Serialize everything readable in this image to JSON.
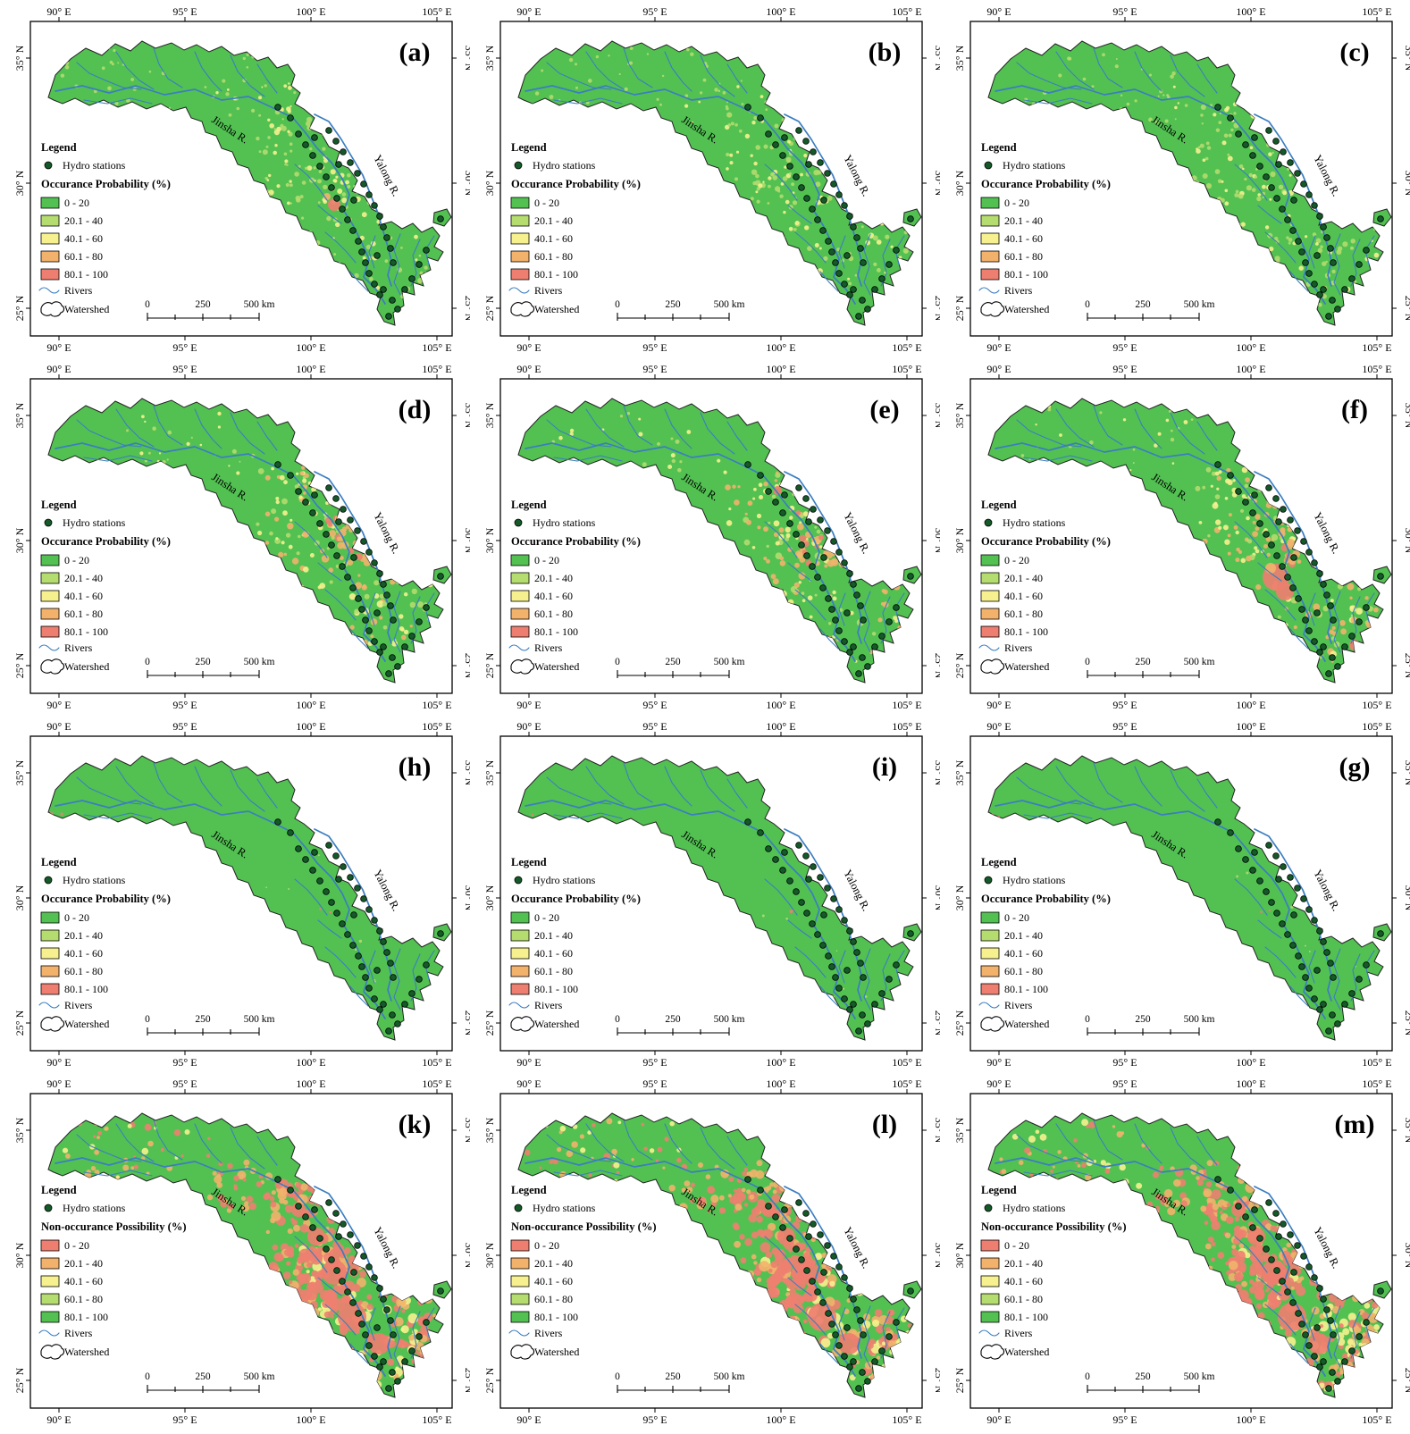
{
  "figure": {
    "x_tick_labels": [
      "90° E",
      "95° E",
      "100° E",
      "105° E"
    ],
    "y_tick_labels": [
      "35° N",
      "30° N",
      "25° N"
    ],
    "map_labels": {
      "jinsha": "Jinsha R.",
      "yalong": "Yalong R."
    },
    "legend": {
      "title": "Legend",
      "stations": "Hydro stations",
      "rivers": "Rivers",
      "watershed": "Watershed"
    },
    "classes": [
      "0 - 20",
      "20.1 - 40",
      "40.1 - 60",
      "60.1 - 80",
      "80.1 - 100"
    ],
    "scalebar": {
      "zero": "0",
      "mid": "250",
      "end": "500 km"
    },
    "colors": {
      "green": "#52c152",
      "lightgreen": "#b4dc6e",
      "yellow": "#f6f18e",
      "orange": "#f2b26c",
      "red": "#ee7f70",
      "river": "#3b7ec0",
      "station": "#145a28"
    },
    "panels": [
      {
        "id": "a",
        "label": "(a)",
        "legend_heading": "Occurance Probability (%)",
        "palette": [
          "green",
          "lightgreen",
          "yellow",
          "orange",
          "red"
        ],
        "variant": "speckle"
      },
      {
        "id": "b",
        "label": "(b)",
        "legend_heading": "Occurance Probability (%)",
        "palette": [
          "green",
          "lightgreen",
          "yellow",
          "orange",
          "red"
        ],
        "variant": "speckle"
      },
      {
        "id": "c",
        "label": "(c)",
        "legend_heading": "Occurance Probability (%)",
        "palette": [
          "green",
          "lightgreen",
          "yellow",
          "orange",
          "red"
        ],
        "variant": "speckle"
      },
      {
        "id": "d",
        "label": "(d)",
        "legend_heading": "Occurance Probability (%)",
        "palette": [
          "green",
          "lightgreen",
          "yellow",
          "orange",
          "red"
        ],
        "variant": "orange"
      },
      {
        "id": "e",
        "label": "(e)",
        "legend_heading": "Occurance Probability (%)",
        "palette": [
          "green",
          "lightgreen",
          "yellow",
          "orange",
          "red"
        ],
        "variant": "orange"
      },
      {
        "id": "f",
        "label": "(f)",
        "legend_heading": "Occurance Probability (%)",
        "palette": [
          "green",
          "lightgreen",
          "yellow",
          "orange",
          "red"
        ],
        "variant": "orange"
      },
      {
        "id": "h",
        "label": "(h)",
        "legend_heading": "Occurance Probability (%)",
        "palette": [
          "green",
          "lightgreen",
          "yellow",
          "orange",
          "red"
        ],
        "variant": "plain"
      },
      {
        "id": "i",
        "label": "(i)",
        "legend_heading": "Occurance Probability (%)",
        "palette": [
          "green",
          "lightgreen",
          "yellow",
          "orange",
          "red"
        ],
        "variant": "plain"
      },
      {
        "id": "g",
        "label": "(g)",
        "legend_heading": "Occurance Probability (%)",
        "palette": [
          "green",
          "lightgreen",
          "yellow",
          "orange",
          "red"
        ],
        "variant": "plain"
      },
      {
        "id": "k",
        "label": "(k)",
        "legend_heading": "Non-occurance Possibility (%)",
        "palette": [
          "red",
          "orange",
          "yellow",
          "lightgreen",
          "green"
        ],
        "variant": "heavy"
      },
      {
        "id": "l",
        "label": "(l)",
        "legend_heading": "Non-occurance Possibility (%)",
        "palette": [
          "red",
          "orange",
          "yellow",
          "lightgreen",
          "green"
        ],
        "variant": "heavy"
      },
      {
        "id": "m",
        "label": "(m)",
        "legend_heading": "Non-occurance Possibility (%)",
        "palette": [
          "red",
          "orange",
          "yellow",
          "lightgreen",
          "green"
        ],
        "variant": "heavy"
      }
    ]
  }
}
